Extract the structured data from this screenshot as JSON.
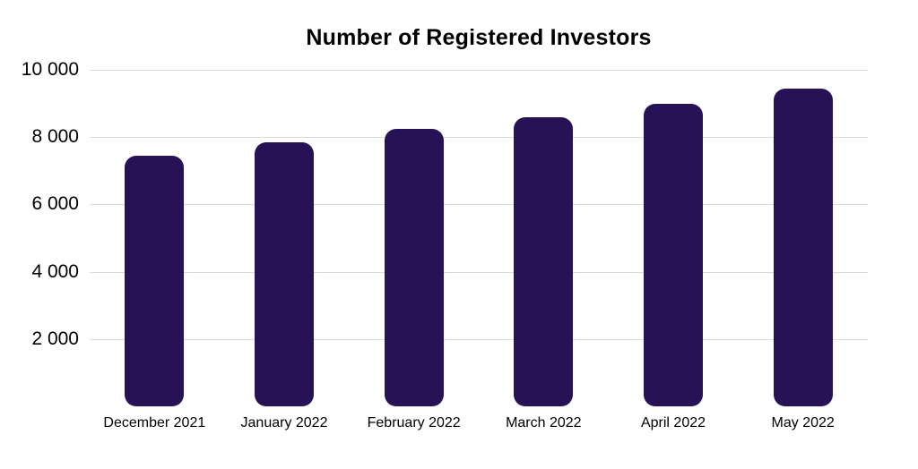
{
  "chart_data": {
    "type": "bar",
    "title": "Number of Registered Investors",
    "categories": [
      "December 2021",
      "January 2022",
      "February 2022",
      "March 2022",
      "April 2022",
      "May 2022"
    ],
    "values": [
      7450,
      7850,
      8250,
      8600,
      9000,
      9450
    ],
    "xlabel": "",
    "ylabel": "",
    "ylim": [
      0,
      10000
    ],
    "y_ticks": [
      {
        "value": 2000,
        "label": "2 000"
      },
      {
        "value": 4000,
        "label": "4 000"
      },
      {
        "value": 6000,
        "label": "6 000"
      },
      {
        "value": 8000,
        "label": "8 000"
      },
      {
        "value": 10000,
        "label": "10 000"
      }
    ],
    "grid": true,
    "legend": false,
    "colors": {
      "bar": "#261254",
      "gridline": "#d9d9d9",
      "text": "#000000",
      "background": "#ffffff"
    }
  }
}
